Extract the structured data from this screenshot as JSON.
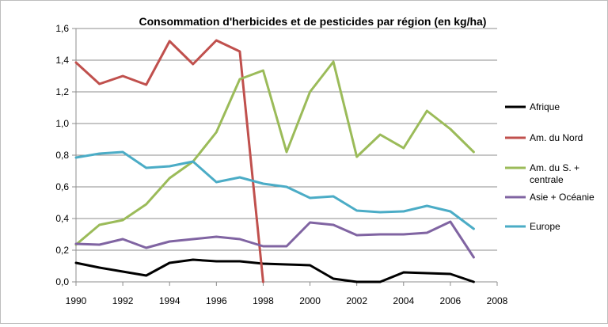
{
  "chart_data": {
    "type": "line",
    "title": "Consommation d'herbicides et de pesticides par région  (en kg/ha)",
    "xlabel": "",
    "ylabel": "",
    "xlim": [
      1990,
      2008
    ],
    "ylim": [
      0,
      1.6
    ],
    "x_ticks": [
      1990,
      1992,
      1994,
      1996,
      1998,
      2000,
      2002,
      2004,
      2006,
      2008
    ],
    "y_ticks": [
      "0,0",
      "0,2",
      "0,4",
      "0,6",
      "0,8",
      "1,0",
      "1,2",
      "1,4",
      "1,6"
    ],
    "y_tick_values": [
      0,
      0.2,
      0.4,
      0.6,
      0.8,
      1.0,
      1.2,
      1.4,
      1.6
    ],
    "grid": "horizontal",
    "legend_position": "right",
    "series": [
      {
        "name": "Afrique",
        "color": "#000000",
        "x": [
          1990,
          1991,
          1992,
          1993,
          1994,
          1995,
          1996,
          1997,
          1998,
          1999,
          2000,
          2001,
          2002,
          2003,
          2004,
          2005,
          2006,
          2007
        ],
        "values": [
          0.12,
          0.09,
          0.065,
          0.04,
          0.12,
          0.14,
          0.13,
          0.13,
          0.115,
          0.11,
          0.105,
          0.02,
          0.0,
          0.0,
          0.06,
          0.055,
          0.05,
          0.0
        ]
      },
      {
        "name": "Am. du Nord",
        "color": "#c0504d",
        "x": [
          1990,
          1991,
          1992,
          1993,
          1994,
          1995,
          1996,
          1997,
          1998
        ],
        "values": [
          1.385,
          1.25,
          1.3,
          1.245,
          1.52,
          1.375,
          1.525,
          1.455,
          0.0
        ]
      },
      {
        "name": "Am. du S. + centrale",
        "color": "#9bbb59",
        "x": [
          1990,
          1991,
          1992,
          1993,
          1994,
          1995,
          1996,
          1997,
          1998,
          1999,
          2000,
          2001,
          2002,
          2003,
          2004,
          2005,
          2006,
          2007
        ],
        "values": [
          0.235,
          0.36,
          0.39,
          0.49,
          0.655,
          0.76,
          0.945,
          1.28,
          1.335,
          0.82,
          1.2,
          1.39,
          0.79,
          0.93,
          0.845,
          1.08,
          0.965,
          0.82
        ]
      },
      {
        "name": "Asie + Océanie",
        "color": "#8064a2",
        "x": [
          1990,
          1991,
          1992,
          1993,
          1994,
          1995,
          1996,
          1997,
          1998,
          1999,
          2000,
          2001,
          2002,
          2003,
          2004,
          2005,
          2006,
          2007
        ],
        "values": [
          0.24,
          0.235,
          0.27,
          0.215,
          0.255,
          0.27,
          0.285,
          0.27,
          0.225,
          0.225,
          0.375,
          0.36,
          0.295,
          0.3,
          0.3,
          0.31,
          0.38,
          0.155
        ]
      },
      {
        "name": "Europe",
        "color": "#4bacc6",
        "x": [
          1990,
          1991,
          1992,
          1993,
          1994,
          1995,
          1996,
          1997,
          1998,
          1999,
          2000,
          2001,
          2002,
          2003,
          2004,
          2005,
          2006,
          2007
        ],
        "values": [
          0.785,
          0.81,
          0.82,
          0.72,
          0.73,
          0.76,
          0.63,
          0.66,
          0.62,
          0.6,
          0.53,
          0.54,
          0.45,
          0.44,
          0.445,
          0.48,
          0.445,
          0.335
        ]
      }
    ]
  }
}
